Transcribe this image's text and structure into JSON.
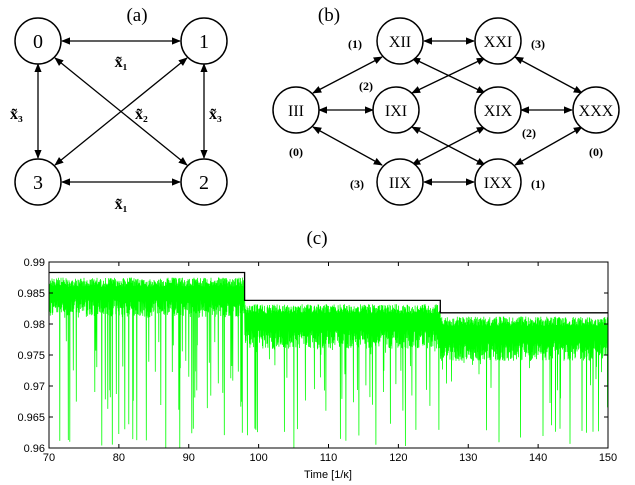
{
  "panel_a": {
    "label": "(a)",
    "nodes": [
      "0",
      "1",
      "3",
      "2"
    ],
    "edge_labels": {
      "top": "x̃₁",
      "bottom": "x̃₁",
      "left": "x̃₃",
      "right": "x̃₃",
      "diagonal": "x̃₂"
    }
  },
  "panel_b": {
    "label": "(b)",
    "nodes": [
      "XII",
      "XXI",
      "III",
      "IXI",
      "XIX",
      "XXX",
      "IIX",
      "IXX"
    ],
    "parity_labels": {
      "XII": "(1)",
      "XXI": "(3)",
      "III": "(0)",
      "IXI": "(2)",
      "XIX": "(2)",
      "XXX": "(0)",
      "IIX": "(3)",
      "IXX": "(1)"
    }
  },
  "panel_c": {
    "label": "(c)"
  },
  "chart_data": {
    "type": "line",
    "xlabel": "Time [1/κ]",
    "xlim": [
      70,
      150
    ],
    "ylim": [
      0.96,
      0.99
    ],
    "x_ticks": [
      "70",
      "80",
      "90",
      "100",
      "110",
      "120",
      "130",
      "140",
      "150"
    ],
    "y_ticks": [
      "0.96",
      "0.965",
      "0.97",
      "0.975",
      "0.98",
      "0.985",
      "0.99"
    ],
    "colors": {
      "envelope": "#000000",
      "signal": "#00ff00"
    },
    "series": [
      {
        "style": "black step",
        "x": [
          70,
          98,
          98,
          126,
          126,
          150
        ],
        "values": [
          0.9883,
          0.9883,
          0.9838,
          0.9838,
          0.9818,
          0.9818
        ]
      },
      {
        "style": "green noisy fidelity trace",
        "segments": [
          {
            "x_start": 70,
            "x_end": 98,
            "typical_top": 0.9875,
            "typical_bottom": 0.984
          },
          {
            "x_start": 98,
            "x_end": 126,
            "typical_top": 0.9832,
            "typical_bottom": 0.979
          },
          {
            "x_start": 126,
            "x_end": 150,
            "typical_top": 0.9812,
            "typical_bottom": 0.977
          }
        ],
        "dips_to": 0.96
      }
    ]
  }
}
